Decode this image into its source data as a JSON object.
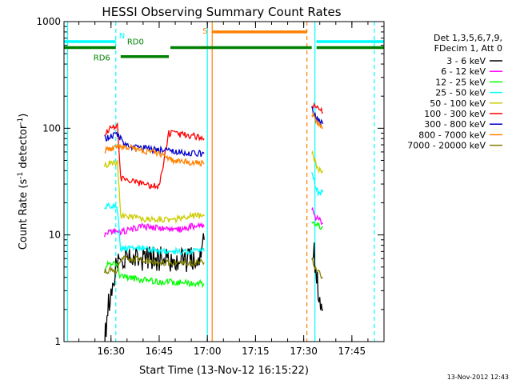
{
  "chart_data": {
    "type": "line",
    "title": "HESSI Observing Summary Count Rates",
    "xlabel": "Start Time (13-Nov-12 16:15:22)",
    "ylabel_main": "Count Rate (s",
    "ylabel_sup1": "-1",
    "ylabel_mid": " detector",
    "ylabel_sup2": "-1",
    "ylabel_end": ")",
    "yscale": "log",
    "ylim": [
      1,
      1000
    ],
    "y_ticks": [
      {
        "value": 1,
        "label": "1"
      },
      {
        "value": 10,
        "label": "10"
      },
      {
        "value": 100,
        "label": "100"
      },
      {
        "value": 1000,
        "label": "1000"
      }
    ],
    "xlim": [
      "16:15:22",
      "17:55:00"
    ],
    "x_ticks": [
      {
        "value": "16:30",
        "label": "16:30"
      },
      {
        "value": "16:45",
        "label": "16:45"
      },
      {
        "value": "17:00",
        "label": "17:00"
      },
      {
        "value": "17:15",
        "label": "17:15"
      },
      {
        "value": "17:30",
        "label": "17:30"
      },
      {
        "value": "17:45",
        "label": "17:45"
      }
    ],
    "legend": {
      "placement": "right",
      "header": [
        "Det 1,3,5,6,7,9,",
        "FDecim 1, Att 0"
      ]
    },
    "series": [
      {
        "name": "3 - 6 keV",
        "color": "#000000",
        "segments": [
          {
            "x": [
              "16:28:00",
              "16:29:00",
              "16:30:00",
              "16:31:00",
              "16:32:00",
              "16:33:00",
              "16:35:00",
              "16:40:00",
              "16:45:00",
              "16:50:00",
              "16:55:00",
              "16:58:00",
              "16:59:00"
            ],
            "y": [
              1.0,
              2.0,
              3.0,
              4.0,
              6.0,
              5.5,
              6.0,
              6.0,
              6.0,
              5.5,
              6.0,
              6.0,
              9.0
            ]
          },
          {
            "x": [
              "17:33:00",
              "17:34:00",
              "17:35:00",
              "17:36:00"
            ],
            "y": [
              8.0,
              4.0,
              2.5,
              2.0
            ]
          }
        ]
      },
      {
        "name": "6 - 12 keV",
        "color": "#ff00ff",
        "segments": [
          {
            "x": [
              "16:28:00",
              "16:30:00",
              "16:32:00",
              "16:35:00",
              "16:40:00",
              "16:45:00",
              "16:50:00",
              "16:55:00",
              "16:59:00"
            ],
            "y": [
              10.0,
              11.0,
              10.5,
              11.0,
              12.0,
              11.5,
              11.0,
              12.0,
              12.0
            ]
          },
          {
            "x": [
              "17:32:30",
              "17:33:30",
              "17:34:30",
              "17:36:00"
            ],
            "y": [
              18.0,
              15.0,
              14.0,
              13.0
            ]
          }
        ]
      },
      {
        "name": "12 - 25 keV",
        "color": "#00ff00",
        "segments": [
          {
            "x": [
              "16:28:00",
              "16:30:00",
              "16:32:00",
              "16:33:00",
              "16:35:00",
              "16:40:00",
              "16:45:00",
              "16:50:00",
              "16:55:00",
              "16:59:00"
            ],
            "y": [
              5.0,
              5.5,
              5.0,
              4.0,
              4.0,
              3.8,
              3.6,
              3.6,
              3.5,
              3.5
            ]
          },
          {
            "x": [
              "17:32:30",
              "17:33:30",
              "17:34:30",
              "17:36:00"
            ],
            "y": [
              14.0,
              13.0,
              12.0,
              12.0
            ]
          }
        ]
      },
      {
        "name": "25 - 50 keV",
        "color": "#00ffff",
        "segments": [
          {
            "x": [
              "16:28:00",
              "16:30:00",
              "16:32:00",
              "16:33:00",
              "16:35:00",
              "16:40:00",
              "16:45:00",
              "16:50:00",
              "16:55:00",
              "16:59:00"
            ],
            "y": [
              18.0,
              19.0,
              18.0,
              7.5,
              7.5,
              7.5,
              7.0,
              7.0,
              7.0,
              7.0
            ]
          },
          {
            "x": [
              "17:32:30",
              "17:33:30",
              "17:34:30",
              "17:36:00"
            ],
            "y": [
              40.0,
              30.0,
              25.0,
              25.0
            ]
          }
        ]
      },
      {
        "name": "50 - 100 keV",
        "color": "#cccc00",
        "segments": [
          {
            "x": [
              "16:28:00",
              "16:30:00",
              "16:32:00",
              "16:33:00",
              "16:35:00",
              "16:40:00",
              "16:45:00",
              "16:50:00",
              "16:55:00",
              "16:59:00"
            ],
            "y": [
              45.0,
              47.0,
              48.0,
              15.0,
              15.0,
              14.0,
              14.0,
              14.0,
              15.0,
              15.0
            ]
          },
          {
            "x": [
              "17:32:30",
              "17:33:30",
              "17:34:30",
              "17:36:00"
            ],
            "y": [
              60.0,
              50.0,
              40.0,
              40.0
            ]
          }
        ]
      },
      {
        "name": "100 - 300 keV",
        "color": "#ff0000",
        "segments": [
          {
            "x": [
              "16:28:00",
              "16:30:00",
              "16:32:00",
              "16:33:00",
              "16:35:00",
              "16:40:00",
              "16:45:00",
              "16:48:00",
              "16:50:00",
              "16:55:00",
              "16:59:00"
            ],
            "y": [
              90.0,
              100.0,
              105.0,
              34.0,
              32.0,
              30.0,
              28.0,
              90.0,
              88.0,
              85.0,
              80.0
            ]
          },
          {
            "x": [
              "17:32:30",
              "17:33:30",
              "17:34:30",
              "17:36:00"
            ],
            "y": [
              170.0,
              160.0,
              150.0,
              140.0
            ]
          }
        ]
      },
      {
        "name": "300 - 800 keV",
        "color": "#0000cc",
        "segments": [
          {
            "x": [
              "16:28:00",
              "16:30:00",
              "16:32:00",
              "16:35:00",
              "16:40:00",
              "16:45:00",
              "16:48:00",
              "16:50:00",
              "16:55:00",
              "16:59:00"
            ],
            "y": [
              80.0,
              85.0,
              88.0,
              68.0,
              65.0,
              62.0,
              62.0,
              60.0,
              58.0,
              58.0
            ]
          },
          {
            "x": [
              "17:32:30",
              "17:33:30",
              "17:34:30",
              "17:36:00"
            ],
            "y": [
              150.0,
              135.0,
              120.0,
              110.0
            ]
          }
        ]
      },
      {
        "name": "800 - 7000 keV",
        "color": "#ff8000",
        "segments": [
          {
            "x": [
              "16:28:00",
              "16:30:00",
              "16:32:00",
              "16:35:00",
              "16:40:00",
              "16:45:00",
              "16:48:00",
              "16:50:00",
              "16:55:00",
              "16:59:00"
            ],
            "y": [
              62.0,
              65.0,
              68.0,
              66.0,
              62.0,
              58.0,
              52.0,
              50.0,
              48.0,
              46.0
            ]
          },
          {
            "x": [
              "17:32:30",
              "17:33:30",
              "17:34:30",
              "17:36:00"
            ],
            "y": [
              140.0,
              125.0,
              110.0,
              100.0
            ]
          }
        ]
      },
      {
        "name": "7000 - 20000 keV",
        "color": "#808000",
        "segments": [
          {
            "x": [
              "16:28:00",
              "16:30:00",
              "16:32:00",
              "16:33:00",
              "16:35:00",
              "16:40:00",
              "16:45:00",
              "16:50:00",
              "16:55:00",
              "16:59:00"
            ],
            "y": [
              4.5,
              4.8,
              4.5,
              6.0,
              6.0,
              5.8,
              5.5,
              5.5,
              5.5,
              5.5
            ]
          },
          {
            "x": [
              "17:32:30",
              "17:33:30",
              "17:34:30",
              "17:36:00"
            ],
            "y": [
              6.0,
              5.0,
              4.5,
              4.0
            ]
          }
        ]
      }
    ],
    "top_bars": [
      {
        "label": "N",
        "color": "#00ffff",
        "value": 650,
        "segments": [
          [
            "16:15:22",
            "16:31:30"
          ],
          [
            "17:34:00",
            "17:55:00"
          ]
        ]
      },
      {
        "label": "S",
        "color": "#ff8000",
        "value": 800,
        "segments": [
          [
            "17:01:30",
            "17:31:00"
          ]
        ]
      },
      {
        "label": "RD0",
        "color": "#008000",
        "value": 570,
        "segments": [
          [
            "16:15:22",
            "16:31:30"
          ],
          [
            "16:48:30",
            "17:32:30"
          ],
          [
            "17:34:00",
            "17:55:00"
          ]
        ]
      },
      {
        "label": "RD6",
        "color": "#008000",
        "value": 470,
        "segments": [
          [
            "16:33:00",
            "16:48:00"
          ]
        ]
      }
    ],
    "vertical_lines": [
      {
        "x": "16:16:30",
        "color": "#00ffff",
        "style": "solid"
      },
      {
        "x": "16:31:30",
        "color": "#00ffff",
        "style": "dashed"
      },
      {
        "x": "17:00:00",
        "color": "#00ffff",
        "style": "solid"
      },
      {
        "x": "17:01:30",
        "color": "#ff8000",
        "style": "solid"
      },
      {
        "x": "17:31:00",
        "color": "#ff8000",
        "style": "dashed"
      },
      {
        "x": "17:33:30",
        "color": "#00ffff",
        "style": "solid"
      },
      {
        "x": "17:52:00",
        "color": "#00ffff",
        "style": "dashed"
      }
    ]
  },
  "footer": {
    "timestamp": "13-Nov-2012 12:43"
  }
}
